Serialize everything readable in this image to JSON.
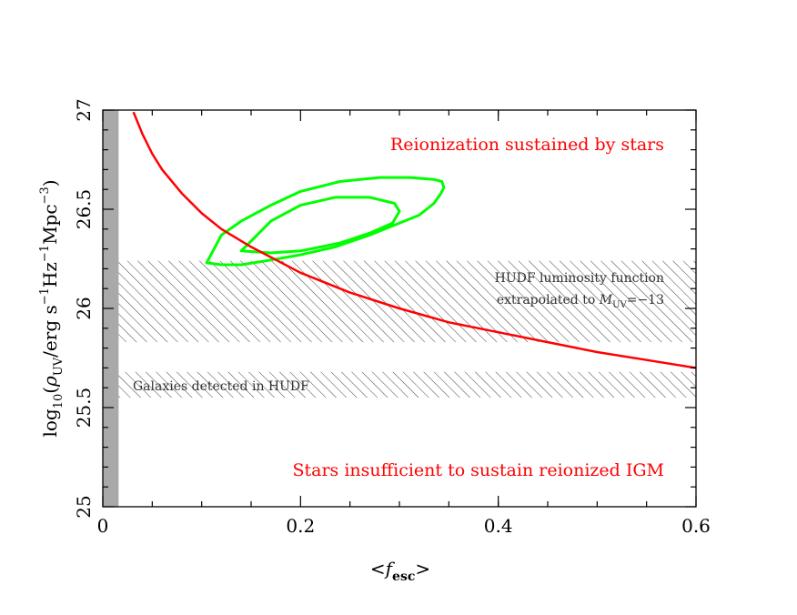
{
  "chart_data": {
    "type": "line",
    "xlabel_lt": "<",
    "xlabel_main": "f",
    "xlabel_sub": "esc",
    "xlabel_gt": ">",
    "ylabel_pre": "log",
    "ylabel_sub10": "10",
    "ylabel_open": "(",
    "ylabel_rho": "ρ",
    "ylabel_uv": "UV",
    "ylabel_unit1": "/erg s",
    "ylabel_exp1": "−1",
    "ylabel_unit2": "Hz",
    "ylabel_exp2": "−1",
    "ylabel_unit3": "Mpc",
    "ylabel_exp3": "−3",
    "ylabel_close": ")",
    "xlim": [
      0,
      0.6
    ],
    "ylim": [
      25,
      27
    ],
    "x_ticks": [
      0,
      0.2,
      0.4,
      0.6
    ],
    "x_tick_labels": [
      "0",
      "0.2",
      "0.4",
      "0.6"
    ],
    "y_ticks": [
      25,
      25.5,
      26,
      26.5,
      27
    ],
    "y_tick_labels": [
      "25",
      "25.5",
      "26",
      "26.5",
      "27"
    ],
    "critical_curve": {
      "name": "Reionization threshold",
      "color": "#ff0000",
      "x": [
        0.031,
        0.04,
        0.05,
        0.06,
        0.08,
        0.1,
        0.12,
        0.15,
        0.2,
        0.25,
        0.3,
        0.35,
        0.4,
        0.45,
        0.5,
        0.55,
        0.6
      ],
      "y": [
        26.99,
        26.88,
        26.78,
        26.7,
        26.58,
        26.48,
        26.4,
        26.31,
        26.18,
        26.08,
        26.0,
        25.93,
        25.88,
        25.83,
        25.78,
        25.74,
        25.7
      ]
    },
    "bands": [
      {
        "name": "hudf-lf-extrapolated",
        "ymin": 25.83,
        "ymax": 26.24,
        "label_line1": "HUDF luminosity function",
        "label_line2_pre": "extrapolated to ",
        "label_line2_M": "M",
        "label_line2_sub": "UV",
        "label_line2_post": "=−13"
      },
      {
        "name": "galaxies-detected",
        "ymin": 25.55,
        "ymax": 25.68,
        "label": "Galaxies detected in HUDF"
      }
    ],
    "shaded_x_band": {
      "xmin": 0,
      "xmax": 0.016,
      "color": "#a9a9a9"
    },
    "contours": {
      "color": "#00ff00",
      "outer": {
        "x": [
          0.105,
          0.12,
          0.14,
          0.165,
          0.2,
          0.235,
          0.27,
          0.29,
          0.32,
          0.335,
          0.342,
          0.345,
          0.343,
          0.335,
          0.31,
          0.28,
          0.24,
          0.2,
          0.17,
          0.14,
          0.12,
          0.105
        ],
        "y": [
          26.23,
          26.22,
          26.22,
          26.24,
          26.27,
          26.31,
          26.37,
          26.41,
          26.47,
          26.53,
          26.58,
          26.61,
          26.64,
          26.65,
          26.66,
          26.66,
          26.64,
          26.59,
          26.52,
          26.44,
          26.37,
          26.23
        ]
      },
      "inner": {
        "x": [
          0.14,
          0.17,
          0.2,
          0.24,
          0.27,
          0.293,
          0.3,
          0.295,
          0.27,
          0.235,
          0.2,
          0.17,
          0.15,
          0.14
        ],
        "y": [
          26.29,
          26.28,
          26.29,
          26.33,
          26.38,
          26.43,
          26.49,
          26.53,
          26.56,
          26.56,
          26.52,
          26.44,
          26.34,
          26.29
        ]
      }
    },
    "annotations": {
      "upper": "Reionization sustained by stars",
      "lower": "Stars insufficient to sustain reionized IGM"
    },
    "colors": {
      "curve": "#ff0000",
      "contour": "#00ff00",
      "hatch": "#444444",
      "shade": "#a9a9a9"
    }
  }
}
